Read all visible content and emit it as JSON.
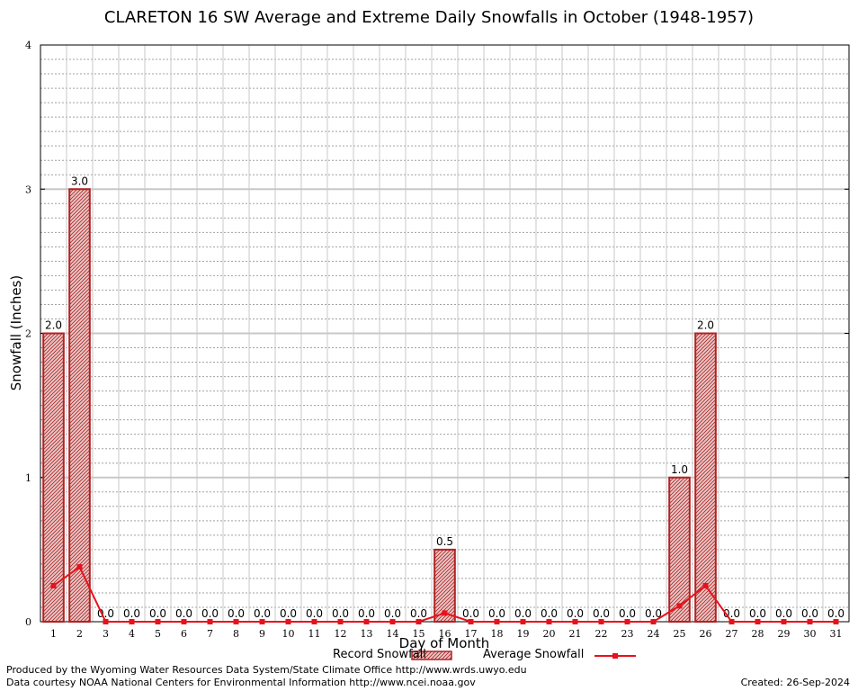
{
  "chart_data": {
    "type": "bar",
    "title": "CLARETON 16 SW Average and Extreme Daily Snowfalls in October (1948-1957)",
    "xlabel": "Day of Month",
    "ylabel": "Snowfall (Inches)",
    "ylim": [
      0,
      4
    ],
    "yticks": [
      "0",
      "1",
      "2",
      "3",
      "4"
    ],
    "categories": [
      "1",
      "2",
      "3",
      "4",
      "5",
      "6",
      "7",
      "8",
      "9",
      "10",
      "11",
      "12",
      "13",
      "14",
      "15",
      "16",
      "17",
      "18",
      "19",
      "20",
      "21",
      "22",
      "23",
      "24",
      "25",
      "26",
      "27",
      "28",
      "29",
      "30",
      "31"
    ],
    "series": [
      {
        "name": "Record Snowfall",
        "type": "bar",
        "color": "#b22222",
        "values": [
          2.0,
          3.0,
          0,
          0,
          0,
          0,
          0,
          0,
          0,
          0,
          0,
          0,
          0,
          0,
          0,
          0.5,
          0,
          0,
          0,
          0,
          0,
          0,
          0,
          0,
          1.0,
          2.0,
          0,
          0,
          0,
          0,
          0
        ],
        "labels": [
          "2.0",
          "3.0",
          "0.0",
          "0.0",
          "0.0",
          "0.0",
          "0.0",
          "0.0",
          "0.0",
          "0.0",
          "0.0",
          "0.0",
          "0.0",
          "0.0",
          "0.0",
          "0.5",
          "0.0",
          "0.0",
          "0.0",
          "0.0",
          "0.0",
          "0.0",
          "0.0",
          "0.0",
          "1.0",
          "2.0",
          "0.0",
          "0.0",
          "0.0",
          "0.0",
          "0.0"
        ]
      },
      {
        "name": "Average Snowfall",
        "type": "line",
        "color": "#e8111b",
        "values": [
          0.25,
          0.38,
          0,
          0,
          0,
          0,
          0,
          0,
          0,
          0,
          0,
          0,
          0,
          0,
          0,
          0.06,
          0,
          0,
          0,
          0,
          0,
          0,
          0,
          0,
          0.11,
          0.25,
          0,
          0,
          0,
          0,
          0
        ]
      }
    ],
    "grid": true,
    "legend": "bottom-center"
  },
  "footer": {
    "line1": "Produced by the Wyoming Water Resources Data System/State Climate Office http://www.wrds.uwyo.edu",
    "line2": "Data courtesy NOAA National Centers for Environmental Information http://www.ncei.noaa.gov",
    "created": "Created: 26-Sep-2024"
  }
}
